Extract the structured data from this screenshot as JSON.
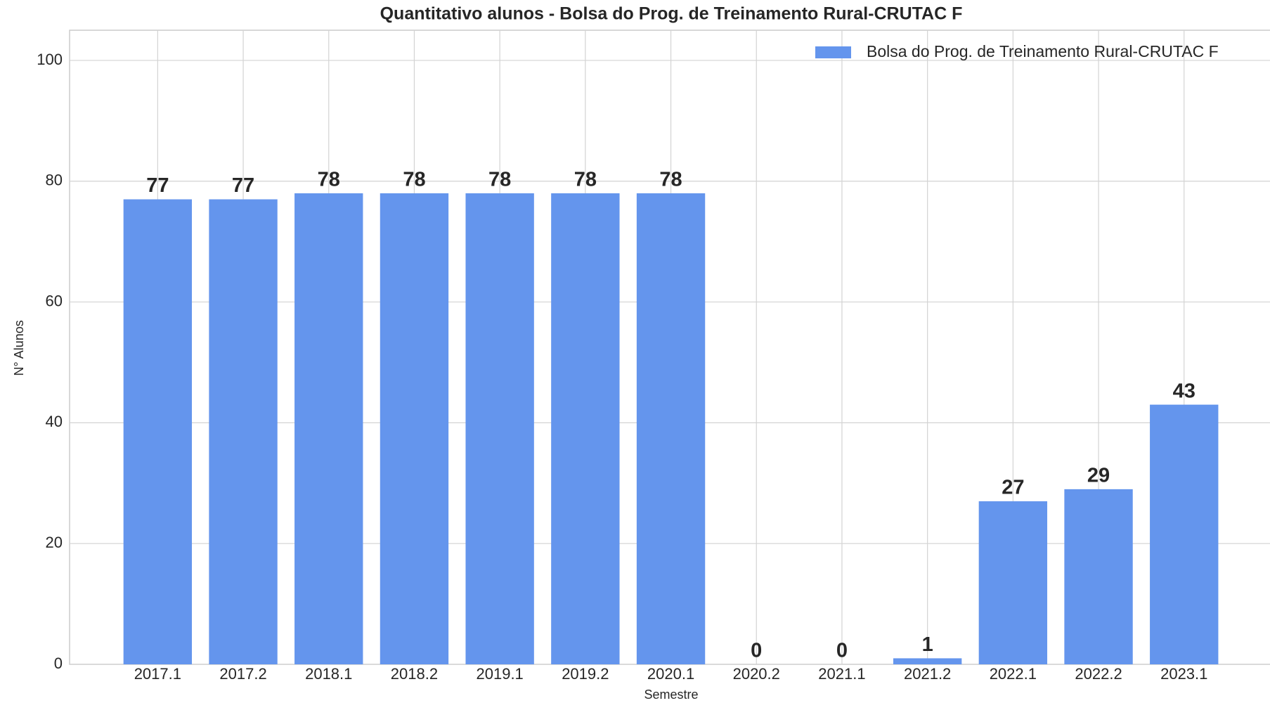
{
  "chart_data": {
    "type": "bar",
    "title": "Quantitativo alunos - Bolsa do Prog. de Treinamento Rural-CRUTAC F",
    "x_label": "Semestre",
    "y_label": "N° Alunos",
    "categories": [
      "2017.1",
      "2017.2",
      "2018.1",
      "2018.2",
      "2019.1",
      "2019.2",
      "2020.1",
      "2020.2",
      "2021.1",
      "2021.2",
      "2022.1",
      "2022.2",
      "2023.1"
    ],
    "series": [
      {
        "name": "Bolsa do Prog. de Treinamento Rural-CRUTAC F",
        "color": "#6495ed",
        "values": [
          77,
          77,
          78,
          78,
          78,
          78,
          78,
          0,
          0,
          1,
          27,
          29,
          43
        ]
      }
    ],
    "ylim": [
      0,
      105
    ],
    "yticks": [
      0,
      20,
      40,
      60,
      80,
      100
    ],
    "grid": true,
    "legend": "upper right"
  }
}
